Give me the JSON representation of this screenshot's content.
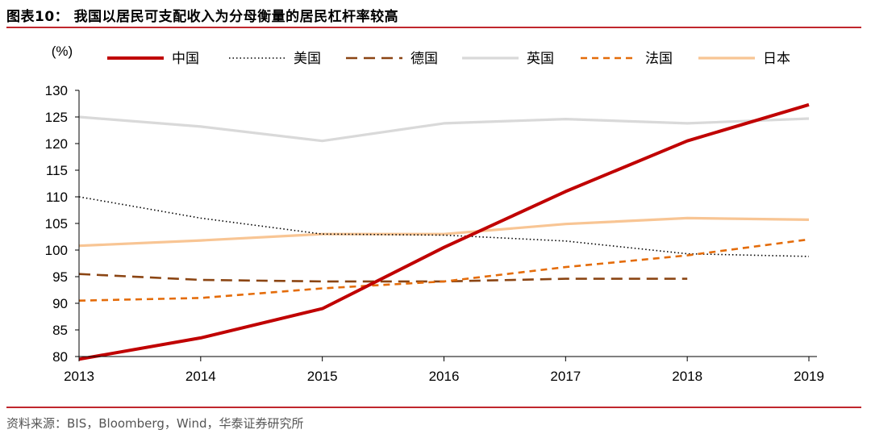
{
  "header": {
    "title": "图表10：  我国以居民可支配收入为分母衡量的居民杠杆率较高"
  },
  "footer": {
    "source": "资料来源：BIS，Bloomberg，Wind，华泰证券研究所"
  },
  "colors": {
    "accent": "#c0272d"
  },
  "chart_data": {
    "type": "line",
    "title": "我国以居民可支配收入为分母衡量的居民杠杆率较高",
    "unit_label": "(%)",
    "categories": [
      "2013",
      "2014",
      "2015",
      "2016",
      "2017",
      "2018",
      "2019"
    ],
    "ylim": [
      80,
      130
    ],
    "yticks": [
      80,
      85,
      90,
      95,
      100,
      105,
      110,
      115,
      120,
      125,
      130
    ],
    "legend_position": "top",
    "grid": false,
    "series": [
      {
        "name": "中国",
        "color": "#c00000",
        "style": "solid-thick",
        "values": [
          79.5,
          83.5,
          89.0,
          100.5,
          111.0,
          120.5,
          127.3
        ]
      },
      {
        "name": "美国",
        "color": "#000000",
        "style": "dotted",
        "values": [
          110.0,
          106.0,
          103.0,
          102.8,
          101.7,
          99.3,
          98.8
        ]
      },
      {
        "name": "德国",
        "color": "#8b4513",
        "style": "long-dash",
        "values": [
          95.5,
          94.4,
          94.1,
          94.1,
          94.6,
          94.6,
          null
        ]
      },
      {
        "name": "英国",
        "color": "#d9d9d9",
        "style": "solid",
        "values": [
          125.0,
          123.2,
          120.5,
          123.8,
          124.6,
          123.8,
          124.7
        ]
      },
      {
        "name": "法国",
        "color": "#e46c0a",
        "style": "dash",
        "values": [
          90.5,
          91.0,
          92.8,
          94.1,
          96.8,
          99.0,
          102.0
        ]
      },
      {
        "name": "日本",
        "color": "#f8c594",
        "style": "solid",
        "values": [
          100.8,
          101.8,
          103.0,
          103.0,
          104.9,
          106.0,
          105.7
        ]
      }
    ]
  }
}
